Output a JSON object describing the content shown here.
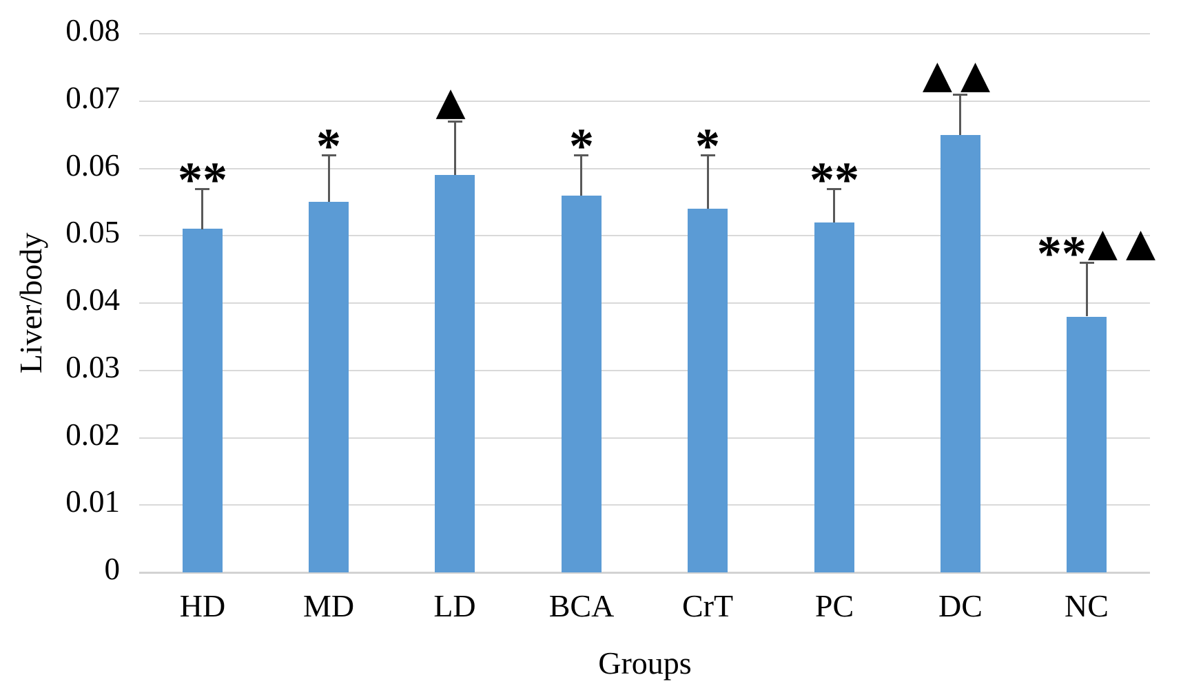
{
  "chart_data": {
    "type": "bar",
    "title": "",
    "xlabel": "Groups",
    "ylabel": "Liver/body",
    "categories": [
      "HD",
      "MD",
      "LD",
      "BCA",
      "CrT",
      "PC",
      "DC",
      "NC"
    ],
    "values": [
      0.051,
      0.055,
      0.059,
      0.056,
      0.054,
      0.052,
      0.065,
      0.038
    ],
    "error_bar_tops": [
      0.057,
      0.062,
      0.067,
      0.062,
      0.062,
      0.057,
      0.071,
      0.046
    ],
    "annotations": [
      "**",
      "*",
      "▲",
      "*",
      "*",
      "**",
      "▲▲",
      "**▲▲"
    ],
    "ylim": [
      0,
      0.08
    ],
    "ytick_interval": 0.01,
    "ytick_labels": [
      "0",
      "0.01",
      "0.02",
      "0.03",
      "0.04",
      "0.05",
      "0.06",
      "0.07",
      "0.08"
    ],
    "grid": true,
    "legend": false,
    "bar_color": "#5B9BD5",
    "error_bar_color": "#595959",
    "gridline_color": "#D9D9D9",
    "axis_line_color": "#D2D2D2",
    "text_color": "#000000"
  }
}
